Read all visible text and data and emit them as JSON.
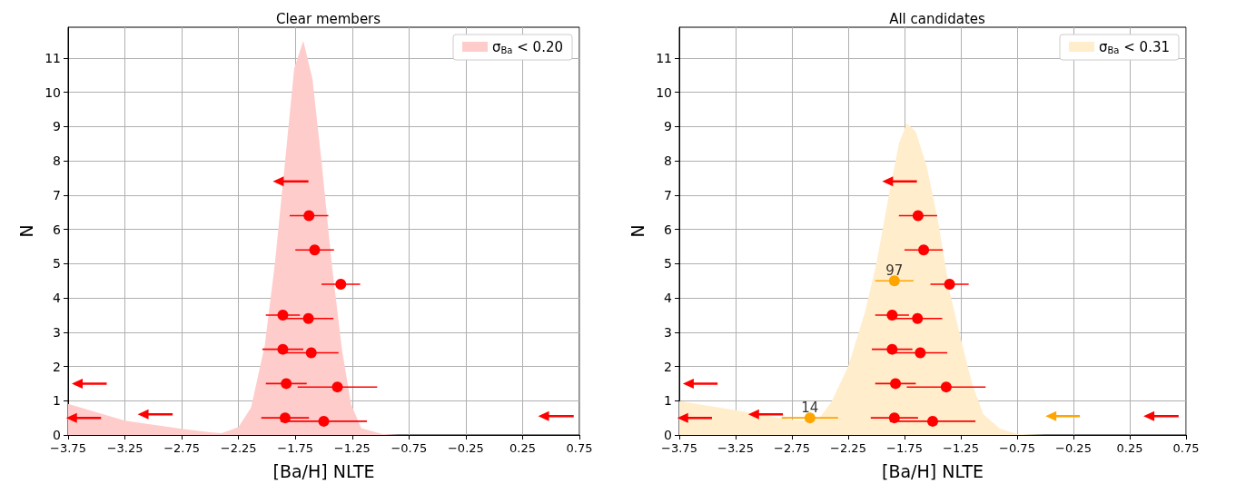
{
  "chart_data": [
    {
      "type": "scatter",
      "title": "Clear members",
      "xlabel": "[Ba/H] NLTE",
      "ylabel": "N",
      "xlim": [
        -3.75,
        0.75
      ],
      "ylim": [
        0,
        11.9
      ],
      "xticks": [
        {
          "value": -3.75,
          "label": "−3.75"
        },
        {
          "value": -3.25,
          "label": "−3.25"
        },
        {
          "value": -2.75,
          "label": "−2.75"
        },
        {
          "value": -2.25,
          "label": "−2.25"
        },
        {
          "value": -1.75,
          "label": "−1.75"
        },
        {
          "value": -1.25,
          "label": "−1.25"
        },
        {
          "value": -0.75,
          "label": "−0.75"
        },
        {
          "value": -0.25,
          "label": "−0.25"
        },
        {
          "value": 0.25,
          "label": "0.25"
        },
        {
          "value": 0.75,
          "label": "0.75"
        }
      ],
      "yticks": [
        0,
        1,
        2,
        3,
        4,
        5,
        6,
        7,
        8,
        9,
        10,
        11
      ],
      "grid": true,
      "legend": "top right",
      "series": [
        {
          "type": "area",
          "name": "σ$_{Ba}$ < 0.20",
          "color": "#ffcccc",
          "x": [
            -3.75,
            -3.25,
            -2.75,
            -2.5,
            -2.4,
            -2.25,
            -2.14,
            -2.02,
            -1.93,
            -1.84,
            -1.76,
            -1.68,
            -1.6,
            -1.52,
            -1.43,
            -1.34,
            -1.26,
            -1.17,
            -0.99,
            -0.84,
            0.75
          ],
          "values": [
            0.91,
            0.42,
            0.18,
            0.08,
            0.05,
            0.23,
            0.8,
            2.6,
            5.0,
            8.0,
            10.7,
            11.5,
            10.4,
            8.0,
            5.0,
            2.5,
            0.9,
            0.2,
            0.03,
            0,
            0
          ]
        },
        {
          "type": "scatter",
          "color": "#ff0000",
          "marker": "circle",
          "x": [
            -1.63,
            -1.58,
            -1.35,
            -1.86,
            -1.635,
            -1.86,
            -1.61,
            -1.83,
            -1.38,
            -1.84,
            -1.5
          ],
          "values": [
            6.4,
            5.4,
            4.4,
            3.5,
            3.4,
            2.5,
            2.4,
            1.5,
            1.4,
            0.5,
            0.4
          ],
          "xerrors": [
            0.17,
            0.17,
            0.17,
            0.15,
            0.22,
            0.18,
            0.24,
            0.18,
            0.35,
            0.21,
            0.38
          ]
        },
        {
          "type": "scatter",
          "color": "#ff0000",
          "marker": "triangle",
          "x": [
            -1.9,
            -3.67,
            -3.09,
            -3.72,
            0.435
          ],
          "values": [
            7.4,
            1.5,
            0.6,
            0.5,
            0.55
          ],
          "xerrors": [
            [
              -1.9,
              -1.635
            ],
            [
              -3.67,
              -3.41
            ],
            [
              -3.09,
              -2.83
            ],
            [
              -3.72,
              -3.46
            ],
            [
              0.435,
              0.7
            ]
          ]
        }
      ]
    },
    {
      "type": "scatter",
      "title": "All candidates",
      "xlabel": "[Ba/H] NLTE",
      "ylabel": "N",
      "xlim": [
        -3.75,
        0.75
      ],
      "ylim": [
        0,
        11.9
      ],
      "xticks": [
        {
          "value": -3.75,
          "label": "−3.75"
        },
        {
          "value": -3.25,
          "label": "−3.25"
        },
        {
          "value": -2.75,
          "label": "−2.75"
        },
        {
          "value": -2.25,
          "label": "−2.25"
        },
        {
          "value": -1.75,
          "label": "−1.75"
        },
        {
          "value": -1.25,
          "label": "−1.25"
        },
        {
          "value": -0.75,
          "label": "−0.75"
        },
        {
          "value": -0.25,
          "label": "−0.25"
        },
        {
          "value": 0.25,
          "label": "0.25"
        },
        {
          "value": 0.75,
          "label": "0.75"
        }
      ],
      "yticks": [
        0,
        1,
        2,
        3,
        4,
        5,
        6,
        7,
        8,
        9,
        10,
        11
      ],
      "grid": true,
      "legend": "top right",
      "annotations": [
        {
          "text": "97",
          "x": -1.84,
          "y": 4.5
        },
        {
          "text": "14",
          "x": -2.59,
          "y": 0.5
        }
      ],
      "series": [
        {
          "type": "area",
          "name": "σ$_{Ba}$ < 0.31",
          "color": "#ffedcc",
          "x": [
            -3.75,
            -3.25,
            -2.75,
            -2.6,
            -2.5,
            -2.4,
            -2.25,
            -2.1,
            -2.0,
            -1.9,
            -1.8,
            -1.73,
            -1.65,
            -1.55,
            -1.45,
            -1.35,
            -1.25,
            -1.15,
            -1.05,
            -0.9,
            -0.75,
            -0.5,
            0.75
          ],
          "values": [
            0.99,
            0.72,
            0.44,
            0.42,
            0.52,
            0.96,
            2.0,
            3.6,
            5.0,
            6.8,
            8.5,
            9.1,
            8.85,
            7.8,
            6.2,
            4.2,
            2.8,
            1.5,
            0.6,
            0.18,
            0.03,
            0,
            0
          ]
        },
        {
          "type": "scatter",
          "color": "#ff0000",
          "marker": "circle",
          "x": [
            -1.63,
            -1.58,
            -1.35,
            -1.86,
            -1.635,
            -1.86,
            -1.61,
            -1.83,
            -1.38,
            -1.84,
            -1.5
          ],
          "values": [
            6.4,
            5.4,
            4.4,
            3.5,
            3.4,
            2.5,
            2.4,
            1.5,
            1.4,
            0.5,
            0.4
          ],
          "xerrors": [
            0.17,
            0.17,
            0.17,
            0.15,
            0.22,
            0.18,
            0.24,
            0.18,
            0.35,
            0.21,
            0.38
          ]
        },
        {
          "type": "scatter",
          "color": "#ffa500",
          "marker": "circle",
          "x": [
            -1.84,
            -2.59
          ],
          "values": [
            4.5,
            0.5
          ],
          "xerrors": [
            0.17,
            0.25
          ]
        },
        {
          "type": "scatter",
          "color": "#ff0000",
          "marker": "triangle",
          "x": [
            -1.9,
            -3.67,
            -3.09,
            -3.72,
            0.42
          ],
          "values": [
            7.4,
            1.5,
            0.6,
            0.5,
            0.55
          ],
          "xerrors": [
            [
              -1.9,
              -1.64
            ],
            [
              -3.67,
              -3.41
            ],
            [
              -3.09,
              -2.83
            ],
            [
              -3.72,
              -3.46
            ],
            [
              0.42,
              0.684
            ]
          ]
        },
        {
          "type": "scatter",
          "color": "#ffa500",
          "marker": "triangle",
          "x": [
            -0.45
          ],
          "values": [
            0.55
          ],
          "xerrors": [
            [
              -0.45,
              -0.193
            ]
          ]
        }
      ]
    }
  ]
}
